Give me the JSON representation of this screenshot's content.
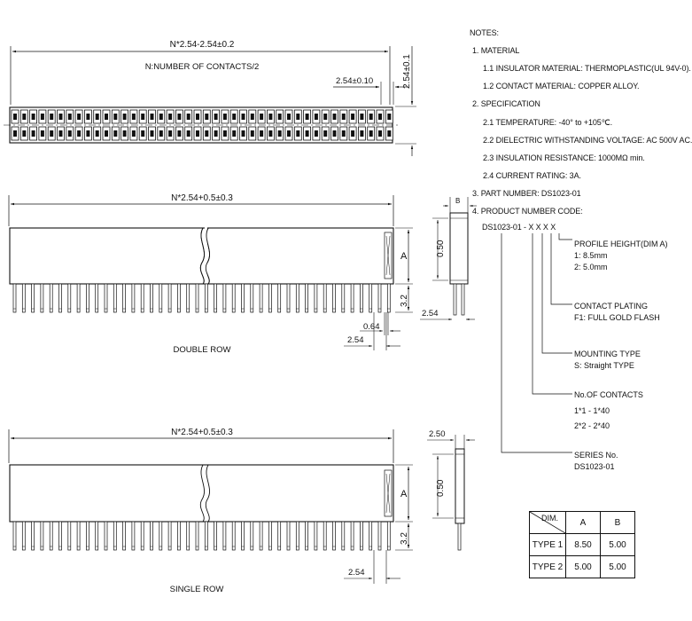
{
  "top_view": {
    "dim_total": "N*2.54-2.54±0.2",
    "dim_note": "N:NUMBER OF CONTACTS/2",
    "dim_pitch": "2.54±0.10",
    "dim_width": "2.54±0.1"
  },
  "double_row": {
    "dim_total": "N*2.54+0.5±0.3",
    "label": "DOUBLE ROW",
    "dim_050": "0.50",
    "dim_a": "A",
    "dim_32": "3.2",
    "dim_064": "0.64",
    "dim_254_a": "2.54",
    "dim_254_b": "2.54",
    "dim_b": "B"
  },
  "single_row": {
    "dim_total": "N*2.54+0.5±0.3",
    "label": "SINGLE ROW",
    "dim_250": "2.50",
    "dim_050": "0.50",
    "dim_a": "A",
    "dim_32": "3.2",
    "dim_254": "2.54"
  },
  "notes": {
    "heading": "NOTES:",
    "n1": "1. MATERIAL",
    "n1_1": "1.1 INSULATOR MATERIAL: THERMOPLASTIC(UL 94V-0).",
    "n1_2": "1.2 CONTACT MATERIAL: COPPER ALLOY.",
    "n2": "2. SPECIFICATION",
    "n2_1": "2.1 TEMPERATURE: -40° to +105℃.",
    "n2_2": "2.2 DIELECTRIC WITHSTANDING VOLTAGE: AC 500V AC.",
    "n2_3": "2.3 INSULATION RESISTANCE: 1000MΩ min.",
    "n2_4": "2.4 CURRENT RATING: 3A.",
    "n3": "3. PART NUMBER: DS1023-01",
    "n4": "4. PRODUCT NUMBER CODE:",
    "code": "DS1023-01 - X X X X"
  },
  "code_legend": {
    "profile_title": "PROFILE HEIGHT(DIM A)",
    "profile_1": "1: 8.5mm",
    "profile_2": "2: 5.0mm",
    "plating_title": "CONTACT PLATING",
    "plating_1": "F1: FULL GOLD FLASH",
    "mounting_title": "MOUNTING TYPE",
    "mounting_1": "S: Straight TYPE",
    "contacts_title": "No.OF CONTACTS",
    "contacts_1": "1*1 - 1*40",
    "contacts_2": "2*2 - 2*40",
    "series_title": "SERIES No.",
    "series_1": "DS1023-01"
  },
  "dim_table": {
    "header": [
      "DIM.",
      "A",
      "B"
    ],
    "rows": [
      [
        "TYPE 1",
        "8.50",
        "5.00"
      ],
      [
        "TYPE 2",
        "5.00",
        "5.00"
      ]
    ]
  }
}
